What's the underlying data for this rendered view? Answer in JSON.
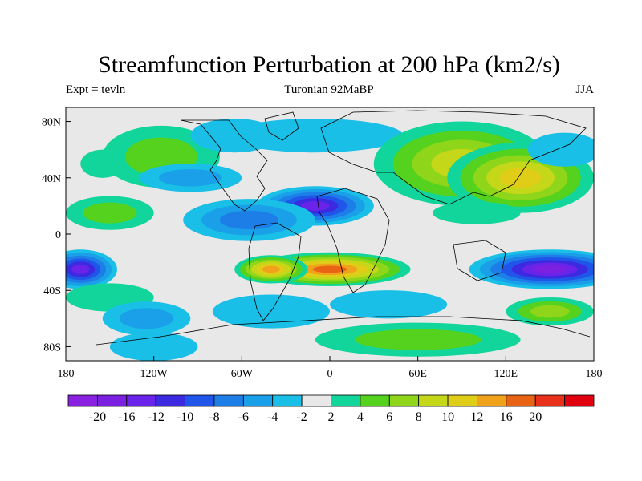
{
  "title": "Streamfunction Perturbation at 200 hPa (km2/s)",
  "left_string": "Expt = tevln",
  "center_string": "Turonian  92MaBP",
  "right_string": "JJA",
  "colors": {
    "missing_gray": "#e8e8e8",
    "coast": "#000000"
  },
  "chart_data": {
    "type": "heatmap",
    "xlim": [
      -180,
      180
    ],
    "ylim": [
      -90,
      90
    ],
    "x_ticks": [
      {
        "value": -180,
        "label": "180"
      },
      {
        "value": -120,
        "label": "120W"
      },
      {
        "value": -60,
        "label": "60W"
      },
      {
        "value": 0,
        "label": "0"
      },
      {
        "value": 60,
        "label": "60E"
      },
      {
        "value": 120,
        "label": "120E"
      },
      {
        "value": 180,
        "label": "180"
      }
    ],
    "y_ticks": [
      {
        "value": 80,
        "label": "80N"
      },
      {
        "value": 40,
        "label": "40N"
      },
      {
        "value": 0,
        "label": "0"
      },
      {
        "value": -40,
        "label": "40S"
      },
      {
        "value": -80,
        "label": "80S"
      }
    ],
    "colorbar": {
      "colors": [
        "#8a21e0",
        "#7b1fe0",
        "#6a23e8",
        "#3c2ae0",
        "#1f55e8",
        "#1e7ee8",
        "#1aa0e8",
        "#19bfe6",
        "#e8e8e8",
        "#11d59a",
        "#55d21d",
        "#8fd51a",
        "#c5d719",
        "#e0cd18",
        "#f0a21a",
        "#e86414",
        "#e8301a",
        "#e00010"
      ],
      "labels": [
        "-20",
        "-16",
        "-12",
        "-10",
        "-8",
        "-6",
        "-4",
        "-2",
        "2",
        "4",
        "6",
        "8",
        "10",
        "12",
        "16",
        "20"
      ]
    },
    "features": [
      {
        "lon": -115,
        "lat": 55,
        "rx": 40,
        "ry": 22,
        "value": 4
      },
      {
        "lon": -95,
        "lat": 40,
        "rx": 35,
        "ry": 10,
        "value": -6
      },
      {
        "lon": -65,
        "lat": 70,
        "rx": 30,
        "ry": 12,
        "value": -3
      },
      {
        "lon": -10,
        "lat": 20,
        "rx": 40,
        "ry": 14,
        "value": -16
      },
      {
        "lon": -55,
        "lat": 10,
        "rx": 45,
        "ry": 15,
        "value": -8
      },
      {
        "lon": -10,
        "lat": 70,
        "rx": 60,
        "ry": 12,
        "value": -3
      },
      {
        "lon": -150,
        "lat": 15,
        "rx": 30,
        "ry": 12,
        "value": 5
      },
      {
        "lon": -155,
        "lat": 50,
        "rx": 15,
        "ry": 10,
        "value": 3
      },
      {
        "lon": 90,
        "lat": 50,
        "rx": 60,
        "ry": 30,
        "value": 9
      },
      {
        "lon": 130,
        "lat": 40,
        "rx": 50,
        "ry": 25,
        "value": 10
      },
      {
        "lon": 160,
        "lat": 60,
        "rx": 25,
        "ry": 12,
        "value": -3
      },
      {
        "lon": 100,
        "lat": 15,
        "rx": 30,
        "ry": 8,
        "value": 3
      },
      {
        "lon": 0,
        "lat": -25,
        "rx": 55,
        "ry": 12,
        "value": 18
      },
      {
        "lon": -40,
        "lat": -25,
        "rx": 25,
        "ry": 10,
        "value": 12
      },
      {
        "lon": 150,
        "lat": -25,
        "rx": 55,
        "ry": 14,
        "value": -18
      },
      {
        "lon": -170,
        "lat": -25,
        "rx": 25,
        "ry": 14,
        "value": -16
      },
      {
        "lon": -150,
        "lat": -45,
        "rx": 30,
        "ry": 10,
        "value": 3
      },
      {
        "lon": -125,
        "lat": -60,
        "rx": 30,
        "ry": 12,
        "value": -5
      },
      {
        "lon": -40,
        "lat": -55,
        "rx": 40,
        "ry": 12,
        "value": -4
      },
      {
        "lon": 40,
        "lat": -50,
        "rx": 40,
        "ry": 10,
        "value": -3
      },
      {
        "lon": 60,
        "lat": -75,
        "rx": 70,
        "ry": 12,
        "value": 5
      },
      {
        "lon": 150,
        "lat": -55,
        "rx": 30,
        "ry": 10,
        "value": 7
      },
      {
        "lon": -120,
        "lat": -80,
        "rx": 30,
        "ry": 10,
        "value": -4
      }
    ]
  }
}
